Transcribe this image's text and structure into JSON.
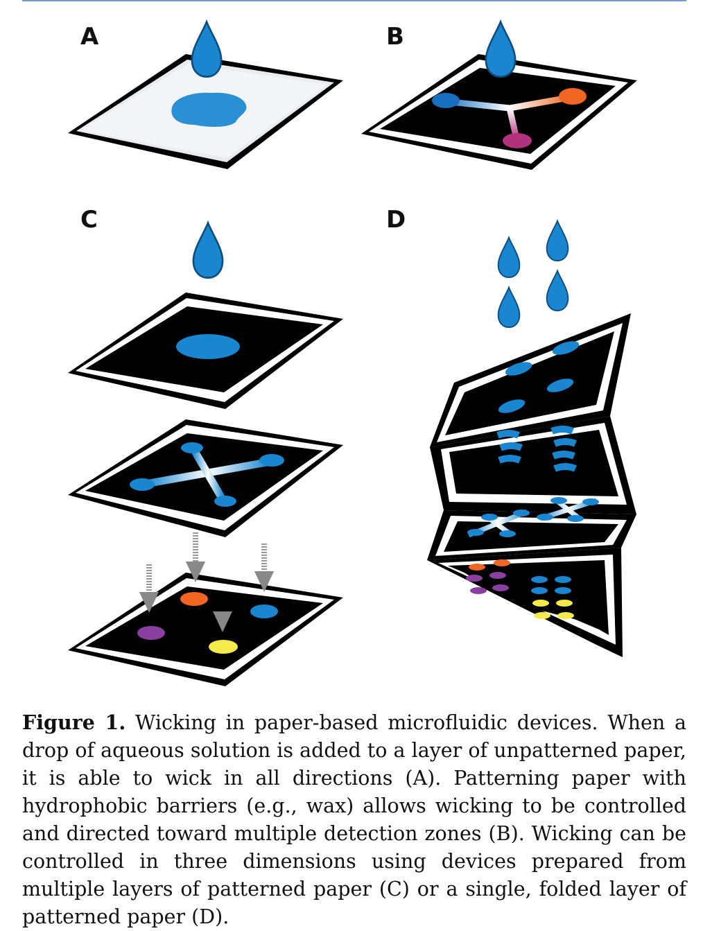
{
  "figure": {
    "panel_labels": {
      "a": "A",
      "b": "B",
      "c": "C",
      "d": "D"
    },
    "colors": {
      "drop": "#1a86d0",
      "paper_black": "#000000",
      "paper_white": "#ffffff",
      "orange": "#f26522",
      "purple": "#8b3fa0",
      "magenta": "#b3327e",
      "yellow": "#f5ea4b",
      "blue_zone": "#1a86d0",
      "arrow_gray": "#999999"
    }
  },
  "caption": {
    "label": "Figure 1.",
    "text": " Wicking in paper-based microfluidic devices. When a drop of aqueous solution is added to a layer of unpatterned paper, it is able to wick in all directions (A). Patterning paper with hydrophobic barriers (e.g., wax) allows wicking to be controlled and directed toward multiple detection zones (B). Wicking can be controlled in three dimensions using devices prepared from multiple layers of patterned paper (C) or a single, folded layer of patterned paper (D)."
  }
}
